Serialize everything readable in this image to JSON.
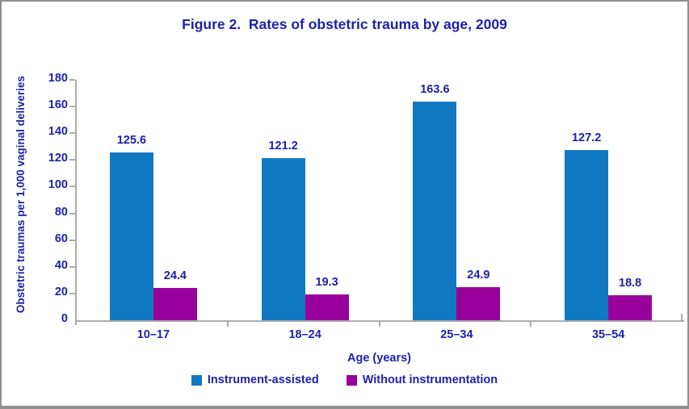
{
  "window": {
    "background": "#ffffff",
    "border_color": "#8f8f8f"
  },
  "colors": {
    "text_navy": "#2020a8",
    "axis_gray": "#ababab",
    "series_blue": "#1178c4",
    "series_purple": "#99009b"
  },
  "chart_data": {
    "type": "bar",
    "title": "Figure 2.  Rates of obstetric trauma by age, 2009",
    "xlabel": "Age (years)",
    "ylabel": "Obstetric traumas per 1,000 vaginal deliveries",
    "categories": [
      "10–17",
      "18–24",
      "25–34",
      "35–54"
    ],
    "series": [
      {
        "name": "Instrument-assisted",
        "color": "#1178c4",
        "values": [
          125.6,
          121.2,
          163.6,
          127.2
        ]
      },
      {
        "name": "Without instrumentation",
        "color": "#99009b",
        "values": [
          24.4,
          19.3,
          24.9,
          18.8
        ]
      }
    ],
    "ylim": [
      0,
      180
    ],
    "y_ticks": [
      0,
      20,
      40,
      60,
      80,
      100,
      120,
      140,
      160,
      180
    ],
    "grid": false,
    "legend_position": "bottom",
    "data_labels": true
  }
}
